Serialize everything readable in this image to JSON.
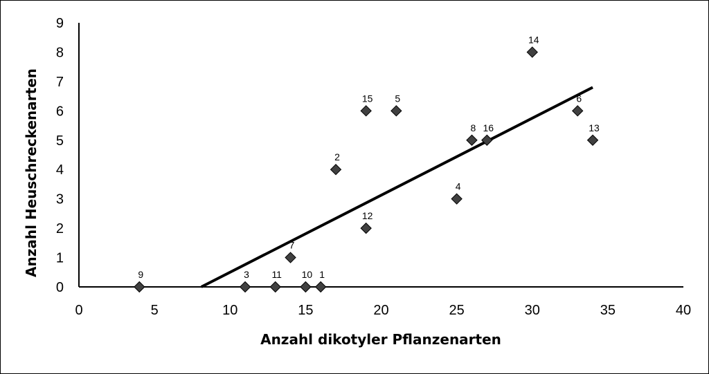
{
  "chart_data": {
    "type": "scatter",
    "title": "",
    "xlabel": "Anzahl dikotyler Pflanzenarten",
    "ylabel": "Anzahl Heuschreckenarten",
    "xlim": [
      0,
      40
    ],
    "ylim": [
      0,
      9
    ],
    "xticks": [
      "0",
      "5",
      "10",
      "15",
      "20",
      "25",
      "30",
      "35",
      "40"
    ],
    "yticks": [
      "0",
      "1",
      "2",
      "3",
      "4",
      "5",
      "6",
      "7",
      "8",
      "9"
    ],
    "grid": false,
    "legend": "none",
    "marker": "diamond",
    "marker_color": "#404040",
    "points": [
      {
        "label": "1",
        "x": 16,
        "y": 0
      },
      {
        "label": "2",
        "x": 17,
        "y": 4
      },
      {
        "label": "3",
        "x": 11,
        "y": 0
      },
      {
        "label": "4",
        "x": 25,
        "y": 3
      },
      {
        "label": "5",
        "x": 21,
        "y": 6
      },
      {
        "label": "6",
        "x": 33,
        "y": 6
      },
      {
        "label": "7",
        "x": 14,
        "y": 1
      },
      {
        "label": "8",
        "x": 26,
        "y": 5
      },
      {
        "label": "9",
        "x": 4,
        "y": 0
      },
      {
        "label": "10",
        "x": 15,
        "y": 0
      },
      {
        "label": "11",
        "x": 13,
        "y": 0
      },
      {
        "label": "12",
        "x": 19,
        "y": 2
      },
      {
        "label": "13",
        "x": 34,
        "y": 5
      },
      {
        "label": "14",
        "x": 30,
        "y": 8
      },
      {
        "label": "15",
        "x": 19,
        "y": 6
      },
      {
        "label": "16",
        "x": 27,
        "y": 5
      }
    ],
    "trendline": {
      "x1": 8.1,
      "y1": 0,
      "x2": 34,
      "y2": 6.8,
      "color": "#000000"
    }
  }
}
